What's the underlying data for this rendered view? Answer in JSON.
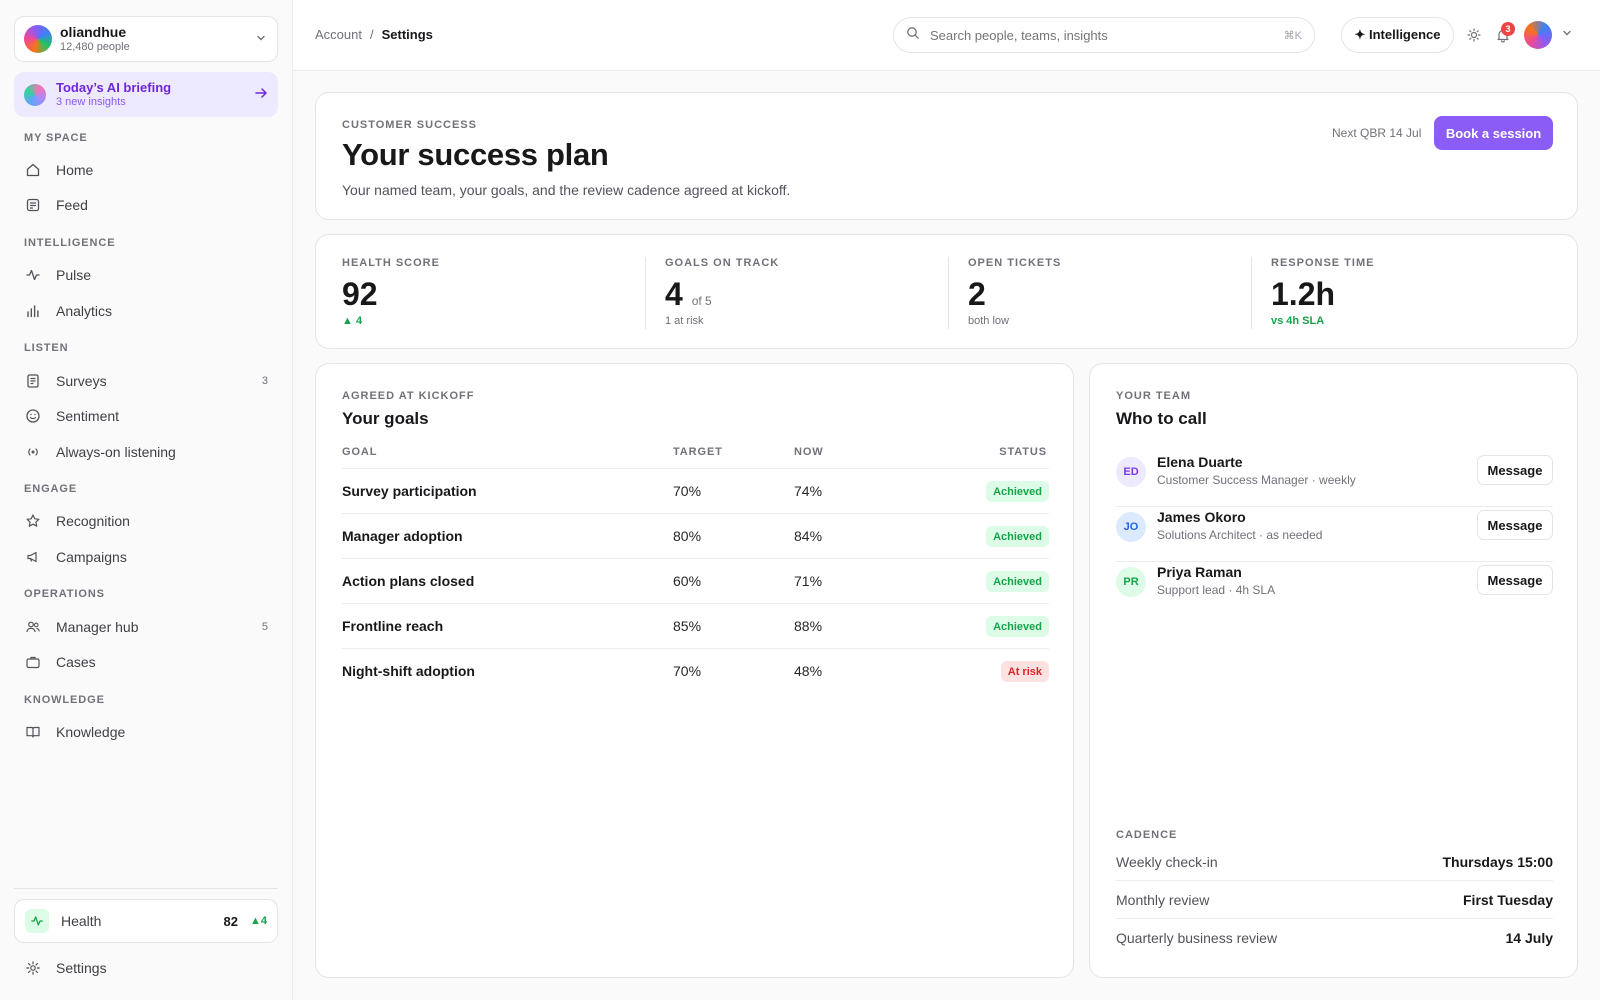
{
  "org": {
    "name": "oliandhue",
    "people": "12,480 people"
  },
  "briefing": {
    "title": "Today’s AI briefing",
    "subtitle": "3 new insights"
  },
  "nav": {
    "my_space": {
      "label": "MY SPACE",
      "items": [
        {
          "label": "Home",
          "icon": "home-icon"
        },
        {
          "label": "Feed",
          "icon": "feed-icon"
        }
      ]
    },
    "intelligence": {
      "label": "INTELLIGENCE",
      "items": [
        {
          "label": "Pulse",
          "icon": "pulse-icon"
        },
        {
          "label": "Analytics",
          "icon": "bar-chart-icon"
        }
      ]
    },
    "listen": {
      "label": "LISTEN",
      "items": [
        {
          "label": "Surveys",
          "icon": "survey-icon",
          "count": "3"
        },
        {
          "label": "Sentiment",
          "icon": "smile-icon"
        },
        {
          "label": "Always-on listening",
          "icon": "broadcast-icon"
        }
      ]
    },
    "engage": {
      "label": "ENGAGE",
      "items": [
        {
          "label": "Recognition",
          "icon": "star-icon"
        },
        {
          "label": "Campaigns",
          "icon": "megaphone-icon"
        }
      ]
    },
    "operations": {
      "label": "OPERATIONS",
      "items": [
        {
          "label": "Manager hub",
          "icon": "users-icon",
          "count": "5"
        },
        {
          "label": "Cases",
          "icon": "briefcase-icon"
        }
      ]
    },
    "knowledge": {
      "label": "KNOWLEDGE",
      "items": [
        {
          "label": "Knowledge",
          "icon": "book-icon"
        }
      ]
    }
  },
  "health": {
    "label": "Health",
    "value": "82",
    "delta": "4"
  },
  "settings": {
    "label": "Settings"
  },
  "breadcrumb": {
    "parent": "Account",
    "separator": "/",
    "current": "Settings"
  },
  "search": {
    "placeholder": "Search people, teams, insights",
    "shortcut": "⌘K"
  },
  "topbar": {
    "intelligence_label": "✦ Intelligence",
    "notifications": "3"
  },
  "hero": {
    "eyebrow": "CUSTOMER SUCCESS",
    "title": "Your success plan",
    "description": "Your named team, your goals, and the review cadence agreed at kickoff.",
    "next_qbr": "Next QBR 14 Jul",
    "cta": "Book a session"
  },
  "stats": [
    {
      "label": "HEALTH SCORE",
      "value": "92",
      "suffix": "",
      "sub": "4",
      "sub_style": "up"
    },
    {
      "label": "GOALS ON TRACK",
      "value": "4",
      "suffix": "of 5",
      "sub": "1 at risk",
      "sub_style": "muted"
    },
    {
      "label": "OPEN TICKETS",
      "value": "2",
      "suffix": "",
      "sub": "both low",
      "sub_style": "muted"
    },
    {
      "label": "RESPONSE TIME",
      "value": "1.2h",
      "suffix": "",
      "sub": "vs 4h SLA",
      "sub_style": "green"
    }
  ],
  "goals": {
    "eyebrow": "AGREED AT KICKOFF",
    "title": "Your goals",
    "columns": [
      "GOAL",
      "TARGET",
      "NOW",
      "STATUS"
    ],
    "rows": [
      {
        "goal": "Survey participation",
        "target": "70%",
        "now": "74%",
        "status": "Achieved"
      },
      {
        "goal": "Manager adoption",
        "target": "80%",
        "now": "84%",
        "status": "Achieved"
      },
      {
        "goal": "Action plans closed",
        "target": "60%",
        "now": "71%",
        "status": "Achieved"
      },
      {
        "goal": "Frontline reach",
        "target": "85%",
        "now": "88%",
        "status": "Achieved"
      },
      {
        "goal": "Night-shift adoption",
        "target": "70%",
        "now": "48%",
        "status": "At risk"
      }
    ]
  },
  "team": {
    "eyebrow": "YOUR TEAM",
    "title": "Who to call",
    "message_label": "Message",
    "people": [
      {
        "initials": "ED",
        "name": "Elena Duarte",
        "role": "Customer Success Manager · weekly",
        "color": "#ede9fe",
        "text_color": "#7c3aed"
      },
      {
        "initials": "JO",
        "name": "James Okoro",
        "role": "Solutions Architect · as needed",
        "color": "#dbeafe",
        "text_color": "#2563eb"
      },
      {
        "initials": "PR",
        "name": "Priya Raman",
        "role": "Support lead · 4h SLA",
        "color": "#dcfce7",
        "text_color": "#16a34a"
      }
    ]
  },
  "cadence": {
    "eyebrow": "CADENCE",
    "rows": [
      {
        "label": "Weekly check-in",
        "value": "Thursdays 15:00"
      },
      {
        "label": "Monthly review",
        "value": "First Tuesday"
      },
      {
        "label": "Quarterly business review",
        "value": "14 July"
      }
    ]
  },
  "colors": {
    "accent": "#8b5cf6",
    "success": "#16a34a",
    "danger": "#dc2626"
  }
}
